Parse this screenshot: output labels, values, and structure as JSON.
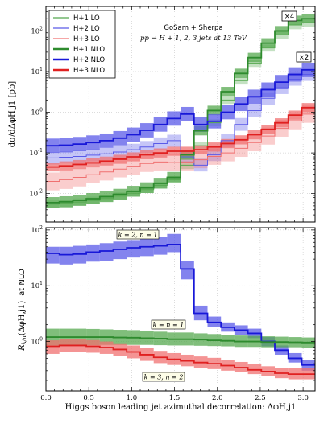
{
  "colors": {
    "h1": "#2e8b2e",
    "h1_band": "#55a84f",
    "h2": "#1818d8",
    "h2_band": "#5a5ae8",
    "h3": "#e02020",
    "h3_band": "#f07070",
    "grid": "#bbbbbb"
  },
  "chart_data": [
    {
      "type": "line",
      "style": "histogram with uncertainty bands",
      "ylabel": "dσ/dΔφH,j1 [pb]",
      "yscale": "log",
      "ylim": [
        0.002,
        400
      ],
      "xlim": [
        0,
        3.14
      ],
      "grid": true,
      "title_lines": [
        "GoSam + Sherpa",
        "pp → H + 1, 2, 3 jets at 13 TeV"
      ],
      "y_ticks": [
        {
          "v": 0.01,
          "label": "10",
          "exp": "-2"
        },
        {
          "v": 0.1,
          "label": "10",
          "exp": "-1"
        },
        {
          "v": 1,
          "label": "10",
          "exp": "0"
        },
        {
          "v": 10,
          "label": "10",
          "exp": "1"
        },
        {
          "v": 100,
          "label": "10",
          "exp": "2"
        }
      ],
      "annotations": [
        "×4",
        "×2"
      ],
      "legend": {
        "position": "top-left",
        "entries": [
          "H+1 LO",
          "H+2 LO",
          "H+3 LO",
          "H+1 NLO",
          "H+2 NLO",
          "H+3 NLO"
        ]
      },
      "bin_edges": [
        0,
        0.157,
        0.314,
        0.471,
        0.628,
        0.785,
        0.942,
        1.1,
        1.257,
        1.414,
        1.571,
        1.728,
        1.885,
        2.042,
        2.199,
        2.356,
        2.513,
        2.67,
        2.827,
        2.985,
        3.142
      ],
      "series": [
        {
          "name": "H+1 LO",
          "order": "LO",
          "color_key": "h1",
          "values": [
            0.0055,
            0.0058,
            0.0062,
            0.0068,
            0.0076,
            0.0087,
            0.0102,
            0.0125,
            0.016,
            0.022,
            0.05,
            0.15,
            0.55,
            2.0,
            6.0,
            16,
            38,
            80,
            140,
            160
          ],
          "lo": [
            0.0045,
            0.0047,
            0.0051,
            0.0056,
            0.0063,
            0.0072,
            0.0084,
            0.0103,
            0.0132,
            0.018,
            0.04,
            0.12,
            0.45,
            1.6,
            4.8,
            13,
            31,
            64,
            110,
            125
          ],
          "hi": [
            0.0068,
            0.0071,
            0.0076,
            0.0084,
            0.0093,
            0.0107,
            0.0125,
            0.0153,
            0.0195,
            0.027,
            0.062,
            0.185,
            0.67,
            2.45,
            7.3,
            19.6,
            46,
            98,
            170,
            195
          ]
        },
        {
          "name": "H+2 LO",
          "order": "LO",
          "color_key": "h2",
          "values": [
            0.075,
            0.078,
            0.082,
            0.088,
            0.095,
            0.105,
            0.12,
            0.14,
            0.17,
            0.2,
            0.08,
            0.05,
            0.09,
            0.2,
            0.5,
            1.1,
            2.2,
            4.0,
            6.5,
            8.5
          ],
          "lo": [
            0.052,
            0.055,
            0.058,
            0.062,
            0.067,
            0.074,
            0.085,
            0.1,
            0.12,
            0.14,
            0.056,
            0.035,
            0.063,
            0.14,
            0.35,
            0.77,
            1.5,
            2.8,
            4.5,
            5.9
          ],
          "hi": [
            0.105,
            0.11,
            0.115,
            0.123,
            0.133,
            0.147,
            0.168,
            0.196,
            0.24,
            0.28,
            0.115,
            0.072,
            0.13,
            0.29,
            0.72,
            1.58,
            3.1,
            5.7,
            9.3,
            12.2
          ]
        },
        {
          "name": "H+3 LO",
          "order": "LO",
          "color_key": "h3",
          "values": [
            0.02,
            0.022,
            0.025,
            0.029,
            0.034,
            0.04,
            0.047,
            0.055,
            0.06,
            0.058,
            0.06,
            0.068,
            0.082,
            0.1,
            0.13,
            0.18,
            0.26,
            0.4,
            0.62,
            0.9
          ],
          "lo": [
            0.012,
            0.013,
            0.015,
            0.018,
            0.021,
            0.025,
            0.029,
            0.034,
            0.037,
            0.036,
            0.037,
            0.042,
            0.051,
            0.062,
            0.08,
            0.11,
            0.16,
            0.25,
            0.38,
            0.55
          ],
          "hi": [
            0.033,
            0.036,
            0.041,
            0.047,
            0.055,
            0.065,
            0.076,
            0.089,
            0.097,
            0.094,
            0.097,
            0.11,
            0.133,
            0.162,
            0.21,
            0.29,
            0.42,
            0.65,
            1.0,
            1.46
          ]
        },
        {
          "name": "H+1 NLO",
          "order": "NLO",
          "color_key": "h1",
          "values": [
            0.006,
            0.0063,
            0.0068,
            0.0075,
            0.0084,
            0.0096,
            0.0113,
            0.0138,
            0.0178,
            0.025,
            0.09,
            0.35,
            1.1,
            3.2,
            9.0,
            22,
            50,
            100,
            180,
            200
          ],
          "lo": [
            0.0044,
            0.0046,
            0.005,
            0.0055,
            0.0062,
            0.0071,
            0.0084,
            0.0103,
            0.0133,
            0.019,
            0.068,
            0.27,
            0.85,
            2.5,
            7.0,
            17,
            39,
            78,
            140,
            155
          ],
          "hi": [
            0.0082,
            0.0086,
            0.0093,
            0.0103,
            0.0115,
            0.0131,
            0.0155,
            0.0189,
            0.0244,
            0.034,
            0.12,
            0.46,
            1.45,
            4.2,
            11.8,
            29,
            66,
            132,
            238,
            265
          ]
        },
        {
          "name": "H+2 NLO",
          "order": "NLO",
          "color_key": "h2",
          "values": [
            0.15,
            0.155,
            0.165,
            0.18,
            0.2,
            0.23,
            0.28,
            0.36,
            0.5,
            0.7,
            0.9,
            0.5,
            0.6,
            1.0,
            1.6,
            2.4,
            3.6,
            5.5,
            8.5,
            11
          ],
          "lo": [
            0.1,
            0.103,
            0.11,
            0.12,
            0.133,
            0.153,
            0.186,
            0.24,
            0.333,
            0.466,
            0.6,
            0.333,
            0.4,
            0.67,
            1.07,
            1.6,
            2.4,
            3.67,
            5.67,
            7.33
          ],
          "hi": [
            0.225,
            0.232,
            0.247,
            0.27,
            0.3,
            0.345,
            0.42,
            0.54,
            0.75,
            1.05,
            1.35,
            0.75,
            0.9,
            1.5,
            2.4,
            3.6,
            5.4,
            8.25,
            12.75,
            16.5
          ]
        },
        {
          "name": "H+3 NLO",
          "order": "NLO",
          "color_key": "h3",
          "values": [
            0.045,
            0.048,
            0.052,
            0.057,
            0.063,
            0.07,
            0.08,
            0.09,
            0.1,
            0.11,
            0.11,
            0.12,
            0.14,
            0.17,
            0.21,
            0.28,
            0.38,
            0.55,
            0.85,
            1.3
          ],
          "lo": [
            0.035,
            0.037,
            0.04,
            0.044,
            0.049,
            0.054,
            0.062,
            0.07,
            0.077,
            0.085,
            0.085,
            0.093,
            0.108,
            0.131,
            0.162,
            0.216,
            0.293,
            0.424,
            0.655,
            1.0
          ],
          "hi": [
            0.058,
            0.062,
            0.067,
            0.074,
            0.081,
            0.09,
            0.103,
            0.116,
            0.129,
            0.142,
            0.142,
            0.155,
            0.181,
            0.22,
            0.271,
            0.361,
            0.49,
            0.71,
            1.1,
            1.68
          ]
        }
      ]
    },
    {
      "type": "line",
      "style": "ratio histogram with uncertainty bands",
      "ylabel_parts": [
        "R",
        "k/n",
        "(ΔφH,j1)",
        "at NLO"
      ],
      "xlabel": "Higgs boson leading jet azimuthal decorrelation:  ΔφH,j1",
      "yscale": "log",
      "ylim": [
        0.13,
        110
      ],
      "xlim": [
        0,
        3.14
      ],
      "grid": true,
      "x_ticks": [
        "0.0",
        "0.5",
        "1.0",
        "1.5",
        "2.0",
        "2.5",
        "3.0"
      ],
      "y_ticks": [
        {
          "v": 1,
          "label": "10",
          "exp": "0"
        },
        {
          "v": 10,
          "label": "10",
          "exp": "1"
        },
        {
          "v": 100,
          "label": "10",
          "exp": "2"
        }
      ],
      "box_labels": [
        "k = 2, n = 1",
        "k = n = 1",
        "k = 3, n = 2"
      ],
      "bin_edges": [
        0,
        0.157,
        0.314,
        0.471,
        0.628,
        0.785,
        0.942,
        1.1,
        1.257,
        1.414,
        1.571,
        1.728,
        1.885,
        2.042,
        2.199,
        2.356,
        2.513,
        2.67,
        2.827,
        2.985,
        3.142
      ],
      "series": [
        {
          "name": "k = 2, n = 1",
          "color_key": "h2",
          "values": [
            38,
            36,
            37,
            40,
            42,
            45,
            48,
            50,
            52,
            55,
            20,
            3.2,
            2.2,
            1.8,
            1.6,
            1.4,
            1.0,
            0.7,
            0.5,
            0.38
          ],
          "lo": [
            25,
            24,
            25,
            27,
            28,
            30,
            32,
            34,
            36,
            40,
            13,
            2.4,
            1.8,
            1.5,
            1.3,
            1.15,
            0.82,
            0.58,
            0.42,
            0.3
          ],
          "hi": [
            50,
            50,
            52,
            55,
            58,
            62,
            66,
            70,
            75,
            85,
            28,
            4.4,
            2.8,
            2.2,
            1.95,
            1.7,
            1.2,
            0.85,
            0.62,
            0.46
          ]
        },
        {
          "name": "k = n = 1",
          "color_key": "h1",
          "values": [
            1.2,
            1.2,
            1.2,
            1.2,
            1.2,
            1.18,
            1.17,
            1.15,
            1.13,
            1.1,
            1.1,
            1.08,
            1.05,
            1.03,
            1.0,
            1.0,
            0.98,
            0.98,
            0.97,
            0.96
          ],
          "lo": [
            0.85,
            0.85,
            0.85,
            0.86,
            0.87,
            0.87,
            0.87,
            0.87,
            0.86,
            0.85,
            0.85,
            0.84,
            0.83,
            0.82,
            0.8,
            0.8,
            0.79,
            0.79,
            0.79,
            0.78
          ],
          "hi": [
            1.7,
            1.7,
            1.7,
            1.68,
            1.65,
            1.62,
            1.6,
            1.55,
            1.5,
            1.45,
            1.45,
            1.4,
            1.36,
            1.32,
            1.28,
            1.26,
            1.24,
            1.22,
            1.2,
            1.18
          ]
        },
        {
          "name": "k = 3, n = 2",
          "color_key": "h3",
          "values": [
            0.82,
            0.85,
            0.85,
            0.82,
            0.78,
            0.72,
            0.65,
            0.58,
            0.52,
            0.48,
            0.45,
            0.42,
            0.4,
            0.37,
            0.34,
            0.31,
            0.29,
            0.27,
            0.26,
            0.26
          ],
          "lo": [
            0.6,
            0.64,
            0.65,
            0.63,
            0.6,
            0.55,
            0.5,
            0.45,
            0.41,
            0.38,
            0.36,
            0.34,
            0.32,
            0.3,
            0.28,
            0.26,
            0.24,
            0.22,
            0.21,
            0.21
          ],
          "hi": [
            1.05,
            1.1,
            1.1,
            1.06,
            1.0,
            0.93,
            0.85,
            0.76,
            0.68,
            0.62,
            0.58,
            0.54,
            0.51,
            0.47,
            0.43,
            0.39,
            0.36,
            0.34,
            0.33,
            0.33
          ]
        }
      ]
    }
  ]
}
